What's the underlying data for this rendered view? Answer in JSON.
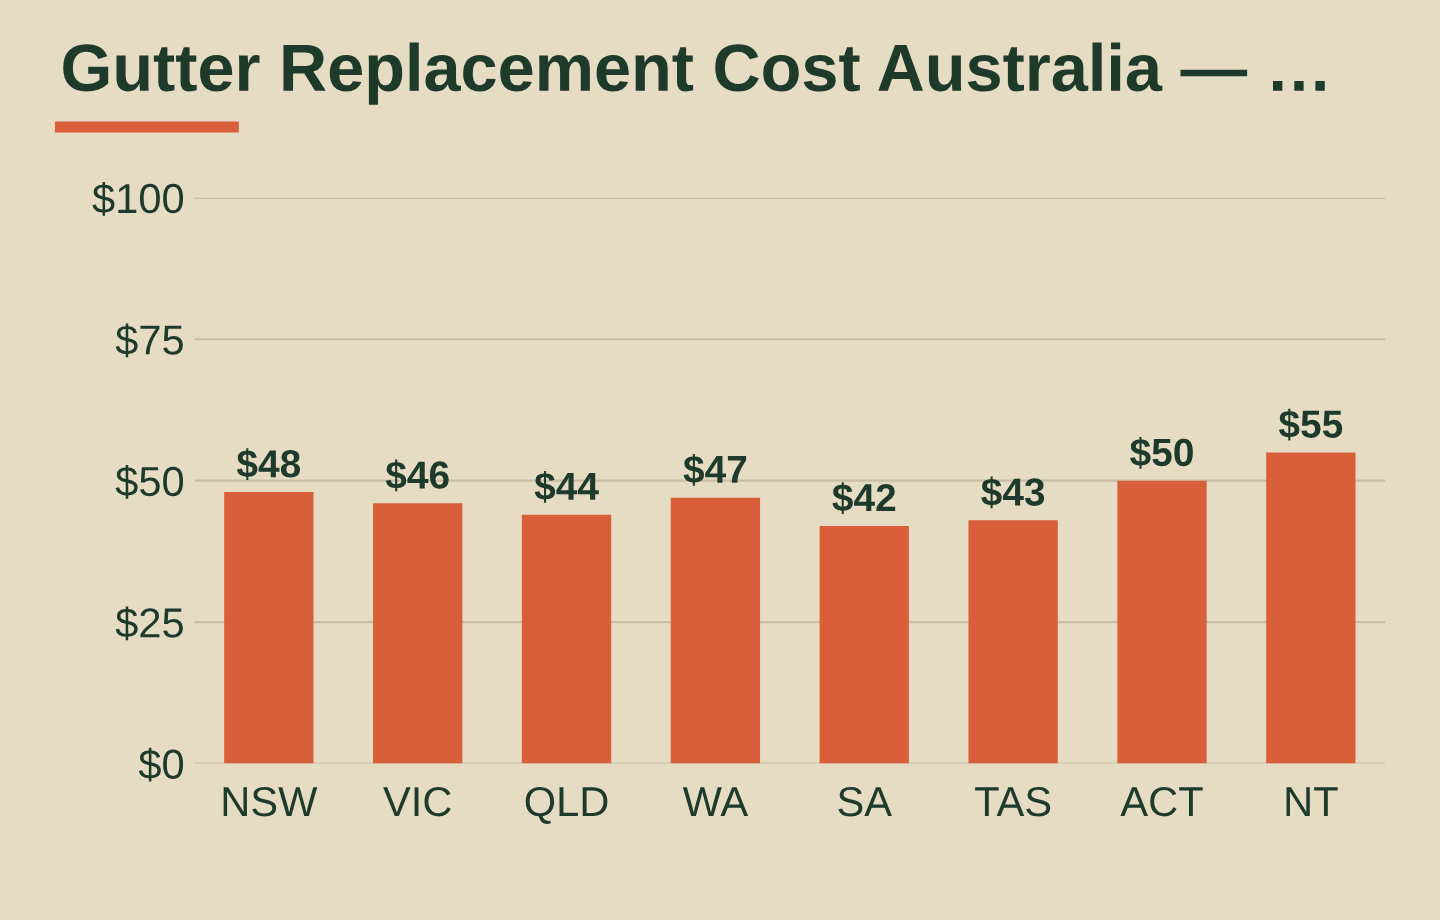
{
  "chart_data": {
    "type": "bar",
    "title": "Gutter Replacement Cost Australia — …",
    "categories": [
      "NSW",
      "VIC",
      "QLD",
      "WA",
      "SA",
      "TAS",
      "ACT",
      "NT"
    ],
    "values": [
      48,
      46,
      44,
      47,
      42,
      43,
      50,
      55
    ],
    "value_labels": [
      "$48",
      "$46",
      "$44",
      "$47",
      "$42",
      "$43",
      "$50",
      "$55"
    ],
    "color": "#d95f3b",
    "ylim": [
      0,
      100
    ],
    "yticks": [
      {
        "value": 0,
        "label": "$0"
      },
      {
        "value": 25,
        "label": "$25"
      },
      {
        "value": 50,
        "label": "$50"
      },
      {
        "value": 75,
        "label": "$75"
      },
      {
        "value": 100,
        "label": "$100"
      }
    ],
    "grid": "y"
  }
}
